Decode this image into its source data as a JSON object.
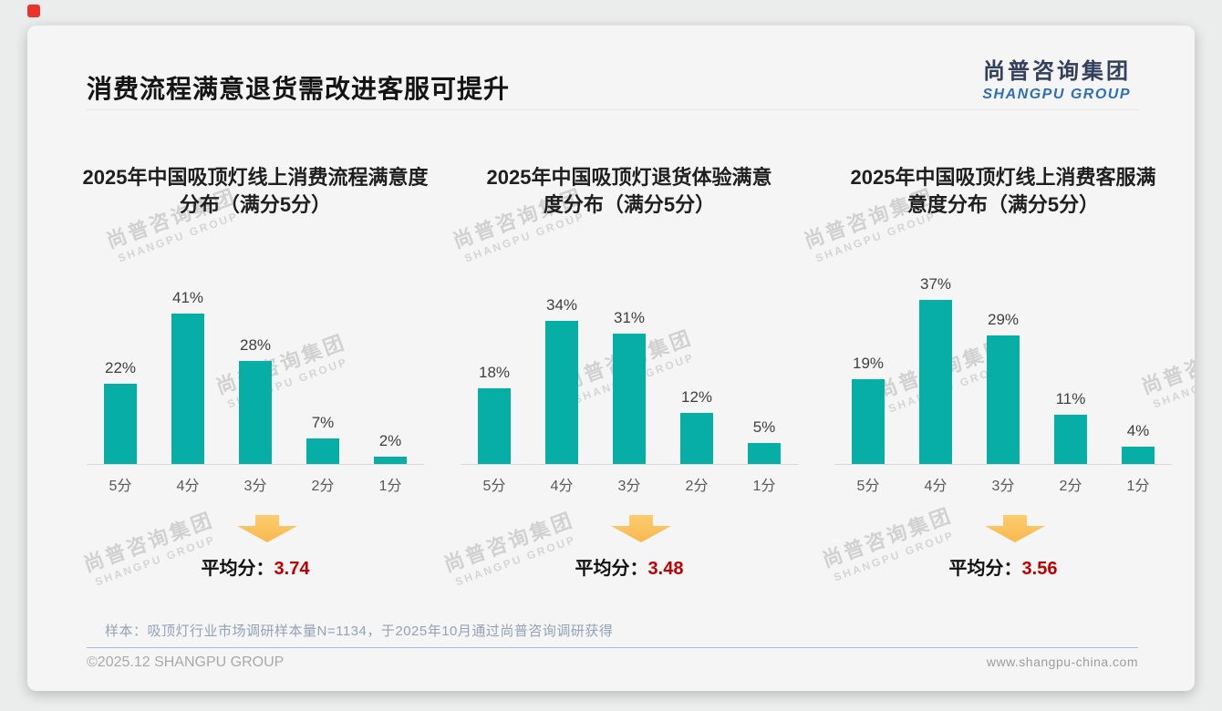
{
  "page": {
    "title": "消费流程满意退货需改进客服可提升"
  },
  "logo": {
    "cn": "尚普咨询集团",
    "en": "SHANGPU GROUP"
  },
  "watermark": {
    "line1": "尚普咨询集团",
    "line2": "SHANGPU GROUP"
  },
  "labels": {
    "average_label": "平均分："
  },
  "colors": {
    "bar": "#06aea6",
    "arrow": "#fbc05b",
    "average_value": "#c00000",
    "logo_cn": "#33405b",
    "logo_en": "#2e6fb7"
  },
  "chart_data": [
    {
      "type": "bar",
      "title": "2025年中国吸顶灯线上消费流程满意度\n分布（满分5分）",
      "categories": [
        "5分",
        "4分",
        "3分",
        "2分",
        "1分"
      ],
      "values": [
        22,
        41,
        28,
        7,
        2
      ],
      "unit": "%",
      "ylim": [
        0,
        46
      ],
      "grid": false,
      "average": "3.74"
    },
    {
      "type": "bar",
      "title": "2025年中国吸顶灯退货体验满意\n度分布（满分5分）",
      "categories": [
        "5分",
        "4分",
        "3分",
        "2分",
        "1分"
      ],
      "values": [
        18,
        34,
        31,
        12,
        5
      ],
      "unit": "%",
      "ylim": [
        0,
        40
      ],
      "grid": false,
      "average": "3.48"
    },
    {
      "type": "bar",
      "title": "2025年中国吸顶灯线上消费客服满\n意度分布（满分5分）",
      "categories": [
        "5分",
        "4分",
        "3分",
        "2分",
        "1分"
      ],
      "values": [
        19,
        37,
        29,
        11,
        4
      ],
      "unit": "%",
      "ylim": [
        0,
        38
      ],
      "grid": false,
      "average": "3.56"
    }
  ],
  "footer": {
    "sample_note": "样本：吸顶灯行业市场调研样本量N=1134，于2025年10月通过尚普咨询调研获得",
    "copyright": "©2025.12 SHANGPU GROUP",
    "website": "www.shangpu-china.com"
  }
}
